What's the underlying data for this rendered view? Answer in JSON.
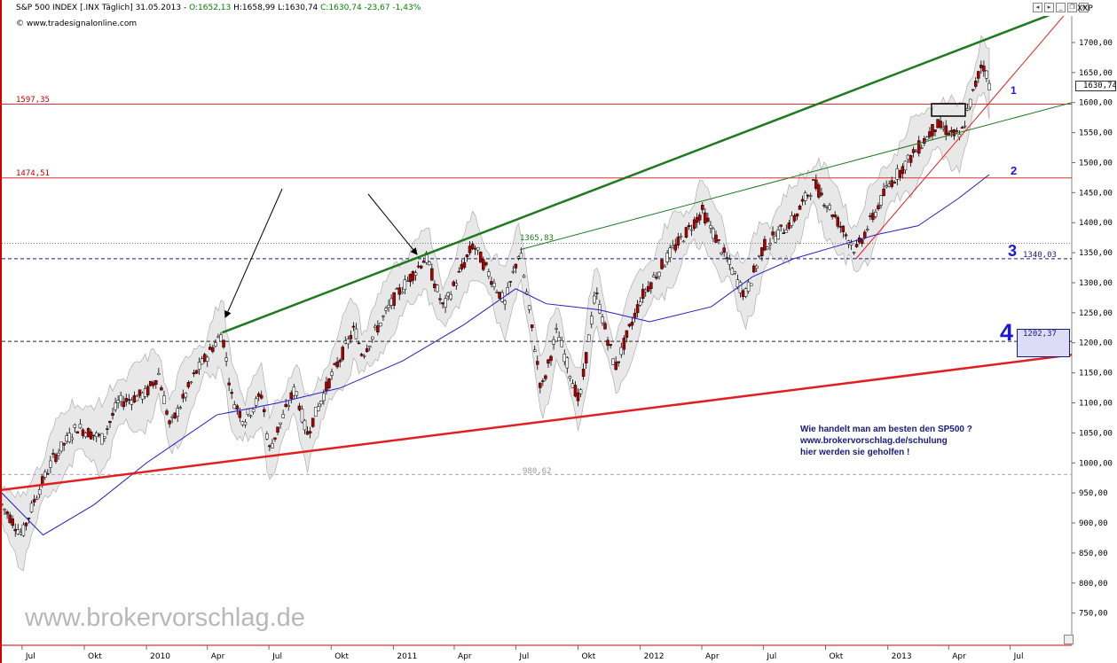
{
  "header": {
    "title": "S&P 500 INDEX [.INX Täglich] 31.05.2013 - ",
    "open": "O:1652,13",
    "hlc": " H:1658,99 L:1630,74 ",
    "close_change": "C:1630,74 -23,67 -1,43%",
    "source": "© www.tradesignalonline.com",
    "symbol_tag": "XXP"
  },
  "levels": {
    "l1": {
      "label": "1",
      "value": "1597,35"
    },
    "l2": {
      "label": "2",
      "value": "1474,51"
    },
    "l3": {
      "label": "3",
      "value": "1340,03"
    },
    "l4": {
      "label": "4",
      "value": "1202,37"
    },
    "mid_label": "1365,83",
    "low_label": "980,62",
    "last_price": "1630,74"
  },
  "ad_text": {
    "line1": "Wie handelt man am besten den SP500 ?",
    "line2": "www.brokervorschlag.de/schulung",
    "line3": "hier werden sie geholfen !"
  },
  "watermark": "www.brokervorschlag.de",
  "colors": {
    "candle_up": "#ffffff",
    "candle_down": "#b00000",
    "ma_line": "#2020c0",
    "green_channel": "#1e7a1e",
    "red_support": "#e02020",
    "level_lines": "#e03030",
    "dashed_levels": "#1a1a80",
    "bollinger_fill": "#e6e6e6"
  },
  "chart_data": {
    "type": "line",
    "title": "S&P 500 INDEX [.INX Täglich] 31.05.2013",
    "ylim": [
      700,
      1750
    ],
    "y_ticks": [
      "1700,00",
      "1650,00",
      "1600,00",
      "1550,00",
      "1500,00",
      "1450,00",
      "1400,00",
      "1350,00",
      "1300,00",
      "1250,00",
      "1200,00",
      "1150,00",
      "1100,00",
      "1050,00",
      "1000,00",
      "950,00",
      "900,00",
      "850,00",
      "800,00",
      "750,00"
    ],
    "x_ticks": [
      "Jul",
      "Okt",
      "2010",
      "Apr",
      "Jul",
      "Okt",
      "2011",
      "Apr",
      "Jul",
      "Okt",
      "2012",
      "Apr",
      "Jul",
      "Okt",
      "2013",
      "Apr",
      "Jul"
    ],
    "x_range": [
      "2009-06-01",
      "2013-09-30"
    ],
    "series": [
      {
        "kind": "price",
        "points": [
          [
            "2009-06-01",
            930
          ],
          [
            "2009-07-01",
            880
          ],
          [
            "2009-07-20",
            940
          ],
          [
            "2009-08-15",
            1005
          ],
          [
            "2009-09-20",
            1060
          ],
          [
            "2009-10-28",
            1040
          ],
          [
            "2009-11-20",
            1100
          ],
          [
            "2009-12-31",
            1115
          ],
          [
            "2010-01-19",
            1148
          ],
          [
            "2010-02-05",
            1060
          ],
          [
            "2010-03-15",
            1150
          ],
          [
            "2010-04-23",
            1217
          ],
          [
            "2010-05-07",
            1110
          ],
          [
            "2010-05-25",
            1070
          ],
          [
            "2010-06-21",
            1115
          ],
          [
            "2010-07-01",
            1020
          ],
          [
            "2010-08-09",
            1125
          ],
          [
            "2010-08-26",
            1047
          ],
          [
            "2010-09-30",
            1141
          ],
          [
            "2010-11-05",
            1225
          ],
          [
            "2010-11-16",
            1180
          ],
          [
            "2011-01-03",
            1275
          ],
          [
            "2011-02-18",
            1343
          ],
          [
            "2011-03-16",
            1257
          ],
          [
            "2011-04-29",
            1364
          ],
          [
            "2011-06-15",
            1265
          ],
          [
            "2011-07-07",
            1355
          ],
          [
            "2011-08-08",
            1120
          ],
          [
            "2011-08-31",
            1220
          ],
          [
            "2011-10-03",
            1099
          ],
          [
            "2011-10-27",
            1285
          ],
          [
            "2011-11-25",
            1158
          ],
          [
            "2012-01-03",
            1277
          ],
          [
            "2012-02-15",
            1350
          ],
          [
            "2012-04-02",
            1419
          ],
          [
            "2012-06-04",
            1278
          ],
          [
            "2012-07-01",
            1360
          ],
          [
            "2012-08-15",
            1405
          ],
          [
            "2012-09-14",
            1466
          ],
          [
            "2012-11-15",
            1353
          ],
          [
            "2013-01-02",
            1462
          ],
          [
            "2013-02-19",
            1530
          ],
          [
            "2013-03-14",
            1563
          ],
          [
            "2013-04-18",
            1541
          ],
          [
            "2013-05-21",
            1669
          ],
          [
            "2013-05-31",
            1631
          ]
        ]
      },
      {
        "kind": "moving_average",
        "points": [
          [
            "2009-06-01",
            950
          ],
          [
            "2009-08-01",
            880
          ],
          [
            "2009-10-15",
            930
          ],
          [
            "2010-01-01",
            1000
          ],
          [
            "2010-04-15",
            1080
          ],
          [
            "2010-07-15",
            1100
          ],
          [
            "2010-10-15",
            1125
          ],
          [
            "2011-01-15",
            1170
          ],
          [
            "2011-04-15",
            1230
          ],
          [
            "2011-07-01",
            1290
          ],
          [
            "2011-08-15",
            1265
          ],
          [
            "2011-11-01",
            1255
          ],
          [
            "2012-01-15",
            1235
          ],
          [
            "2012-04-15",
            1260
          ],
          [
            "2012-06-15",
            1310
          ],
          [
            "2012-08-15",
            1340
          ],
          [
            "2012-10-15",
            1360
          ],
          [
            "2012-12-15",
            1380
          ],
          [
            "2013-02-15",
            1395
          ],
          [
            "2013-04-15",
            1440
          ],
          [
            "2013-05-31",
            1480
          ]
        ]
      }
    ],
    "trendlines": [
      {
        "name": "upper_channel",
        "from": [
          "2010-04-23",
          1217
        ],
        "to": [
          "2013-09-30",
          1760
        ]
      },
      {
        "name": "inner_channel",
        "from": [
          "2011-07-07",
          1355
        ],
        "to": [
          "2013-09-30",
          1600
        ]
      },
      {
        "name": "support",
        "from": [
          "2009-06-01",
          955
        ],
        "to": [
          "2013-09-30",
          1180
        ]
      },
      {
        "name": "steep_support",
        "from": [
          "2012-11-15",
          1340
        ],
        "to": [
          "2013-09-30",
          1760
        ]
      }
    ],
    "hlines": [
      1597.35,
      1474.51,
      1340.03,
      1202.37,
      980.62
    ],
    "annotations": [
      "1597,35",
      "1474,51",
      "1365,83",
      "1340,03",
      "1202,37",
      "980,62"
    ]
  }
}
